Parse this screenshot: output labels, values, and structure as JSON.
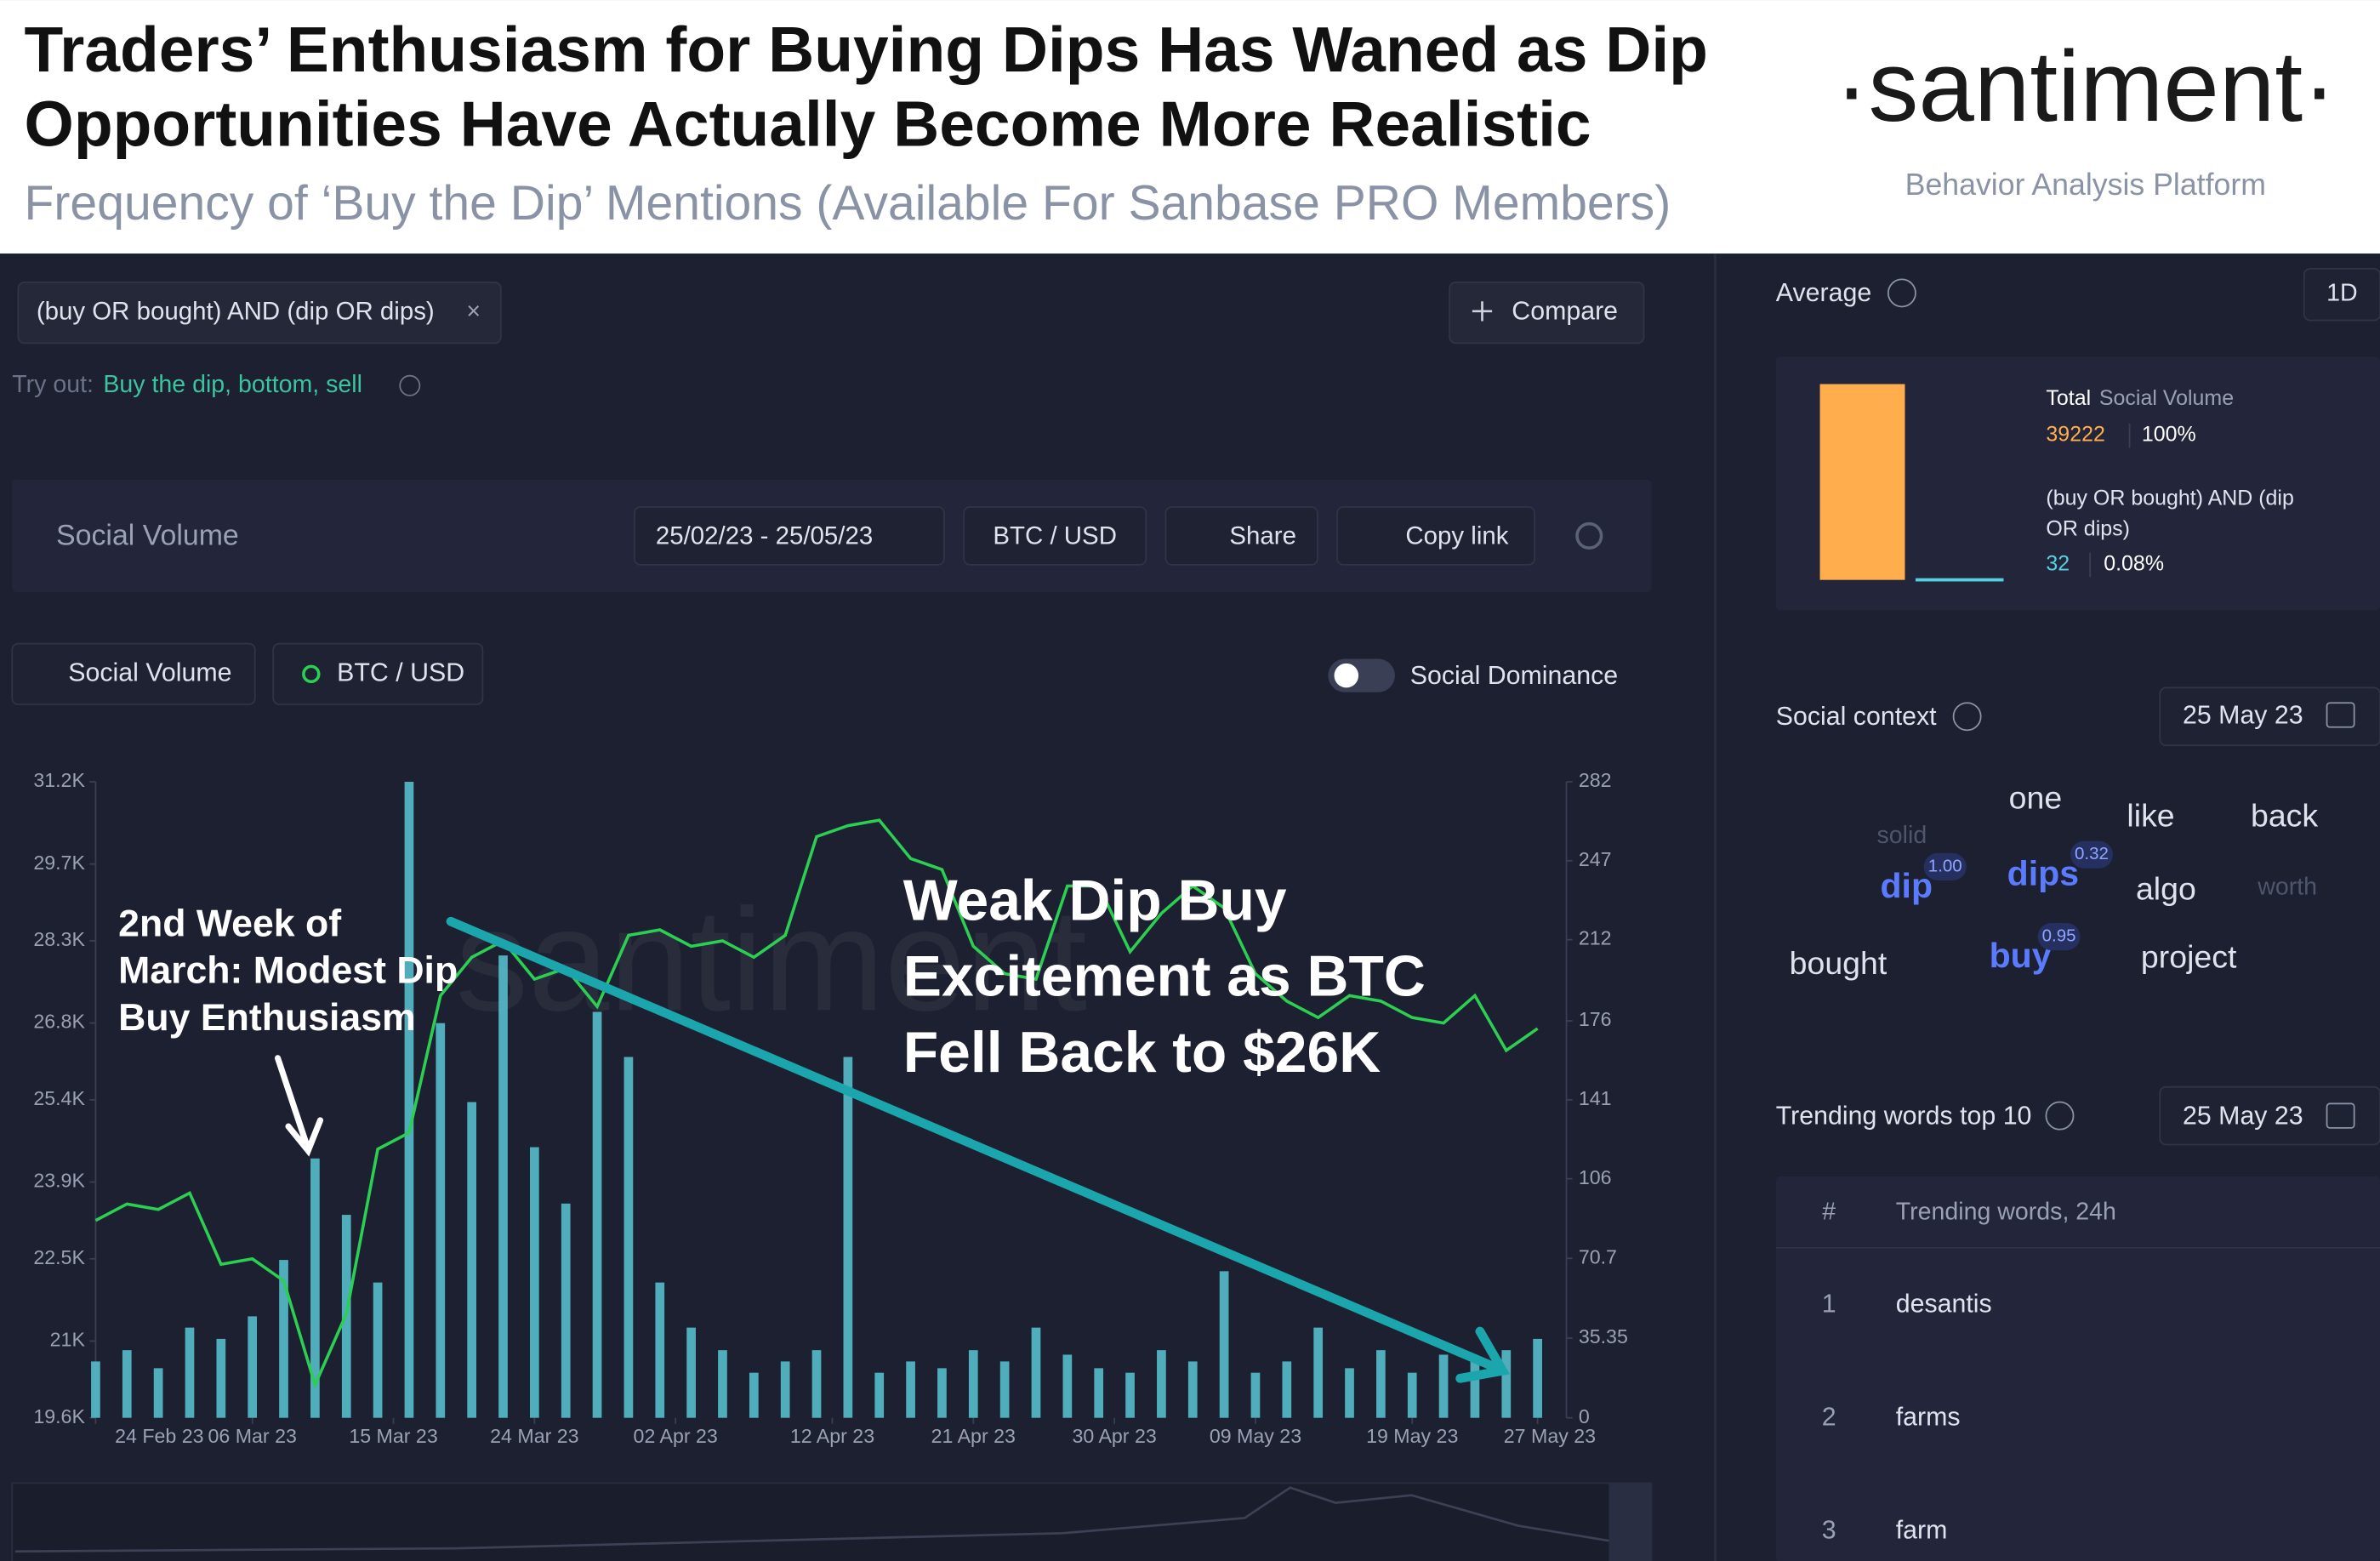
{
  "header": {
    "title_lines": [
      "Traders’ Enthusiasm for Buying Dips Has Waned as Dip",
      "Opportunities Have Actually Become More Realistic"
    ],
    "subtitle": "Frequency of ‘Buy the Dip’ Mentions (Available For Sanbase PRO Members)",
    "brand": "·santiment·",
    "tagline": "Behavior Analysis Platform"
  },
  "toolbar": {
    "query": "(buy OR bought) AND (dip OR dips)",
    "close": "×",
    "compare": "Compare",
    "try_out_label": "Try out:",
    "try_out_links": "Buy the dip, bottom, sell"
  },
  "panel": {
    "metric": "Social Volume",
    "date_range": "25/02/23 - 25/05/23",
    "pair": "BTC / USD",
    "share": "Share",
    "copy_link": "Copy link"
  },
  "chips": {
    "volume": "Social Volume",
    "price": "BTC / USD",
    "toggle": "Social Dominance"
  },
  "chart_data": {
    "type": "combo",
    "watermark": "santiment",
    "x": [
      "2023-02-24",
      "2023-02-26",
      "2023-02-28",
      "2023-03-02",
      "2023-03-04",
      "2023-03-06",
      "2023-03-08",
      "2023-03-10",
      "2023-03-12",
      "2023-03-14",
      "2023-03-16",
      "2023-03-18",
      "2023-03-20",
      "2023-03-22",
      "2023-03-24",
      "2023-03-26",
      "2023-03-28",
      "2023-03-30",
      "2023-04-01",
      "2023-04-03",
      "2023-04-05",
      "2023-04-07",
      "2023-04-09",
      "2023-04-11",
      "2023-04-13",
      "2023-04-15",
      "2023-04-17",
      "2023-04-19",
      "2023-04-21",
      "2023-04-23",
      "2023-04-25",
      "2023-04-27",
      "2023-04-29",
      "2023-05-01",
      "2023-05-03",
      "2023-05-05",
      "2023-05-07",
      "2023-05-09",
      "2023-05-11",
      "2023-05-13",
      "2023-05-15",
      "2023-05-17",
      "2023-05-19",
      "2023-05-21",
      "2023-05-23",
      "2023-05-25",
      "2023-05-27"
    ],
    "series": [
      {
        "name": "Social Volume",
        "type": "bar",
        "axis": "y2",
        "color": "#56bccb",
        "values": [
          25,
          30,
          22,
          40,
          35,
          45,
          70,
          115,
          90,
          60,
          282,
          175,
          140,
          205,
          120,
          95,
          180,
          160,
          60,
          40,
          30,
          20,
          25,
          30,
          160,
          20,
          25,
          22,
          30,
          25,
          40,
          28,
          22,
          20,
          30,
          25,
          65,
          20,
          25,
          40,
          22,
          30,
          20,
          28,
          25,
          30,
          35
        ]
      },
      {
        "name": "BTC / USD",
        "type": "line",
        "color": "#2bd052",
        "values": [
          23200,
          23500,
          23400,
          23700,
          22400,
          22500,
          22100,
          20200,
          21500,
          24500,
          24800,
          27300,
          28000,
          28300,
          27600,
          27800,
          27100,
          28400,
          28500,
          28200,
          28300,
          28000,
          28400,
          30200,
          30400,
          30500,
          29800,
          29600,
          28200,
          27700,
          27600,
          29300,
          29300,
          28100,
          28800,
          29300,
          28900,
          27700,
          27200,
          26900,
          27300,
          27200,
          26900,
          26800,
          27300,
          26300,
          26700
        ]
      }
    ],
    "xlim": [
      "2023-02-24",
      "2023-05-27"
    ],
    "xticks": [
      {
        "value": "2023-02-24",
        "label": "24 Feb 23"
      },
      {
        "value": "2023-03-06",
        "label": "06 Mar 23"
      },
      {
        "value": "2023-03-15",
        "label": "15 Mar 23"
      },
      {
        "value": "2023-03-24",
        "label": "24 Mar 23"
      },
      {
        "value": "2023-04-02",
        "label": "02 Apr 23"
      },
      {
        "value": "2023-04-12",
        "label": "12 Apr 23"
      },
      {
        "value": "2023-04-21",
        "label": "21 Apr 23"
      },
      {
        "value": "2023-04-30",
        "label": "30 Apr 23"
      },
      {
        "value": "2023-05-09",
        "label": "09 May 23"
      },
      {
        "value": "2023-05-19",
        "label": "19 May 23"
      },
      {
        "value": "2023-05-27",
        "label": "27 May 23"
      }
    ],
    "ylim": [
      19600,
      31200
    ],
    "yticks": [
      {
        "value": 19600,
        "label": "19.6K"
      },
      {
        "value": 21000,
        "label": "21K"
      },
      {
        "value": 22500,
        "label": "22.5K"
      },
      {
        "value": 23900,
        "label": "23.9K"
      },
      {
        "value": 25400,
        "label": "25.4K"
      },
      {
        "value": 26800,
        "label": "26.8K"
      },
      {
        "value": 28300,
        "label": "28.3K"
      },
      {
        "value": 29700,
        "label": "29.7K"
      },
      {
        "value": 31200,
        "label": "31.2K"
      }
    ],
    "y2lim": [
      0,
      282
    ],
    "y2ticks": [
      0,
      35.35,
      70.7,
      106,
      141,
      176,
      212,
      247,
      282
    ],
    "grid": false,
    "annotations": [
      [
        "2nd Week of",
        "March: Modest Dip",
        "Buy Enthusiasm"
      ],
      [
        "Weak Dip Buy",
        "Excitement as BTC",
        "Fell Back to $26K"
      ]
    ]
  },
  "sidebar": {
    "average": {
      "label": "Average",
      "interval": "1D",
      "total_label": "Total",
      "total_metric": "Social Volume",
      "total_value": 39222,
      "total_pct": "100%",
      "query_lines": [
        "(buy OR bought) AND (dip",
        "OR dips)"
      ],
      "query_value": 32,
      "query_pct": "0.08%"
    },
    "social_context": {
      "label": "Social context",
      "date": "25 May 23",
      "words": [
        {
          "text": "solid"
        },
        {
          "text": "dip",
          "score": "1.00"
        },
        {
          "text": "one"
        },
        {
          "text": "dips",
          "score": "0.32"
        },
        {
          "text": "like"
        },
        {
          "text": "back"
        },
        {
          "text": "algo"
        },
        {
          "text": "worth"
        },
        {
          "text": "bought"
        },
        {
          "text": "buy",
          "score": "0.95"
        },
        {
          "text": "project"
        }
      ]
    },
    "trending": {
      "label": "Trending words top 10",
      "date": "25 May 23",
      "col_rank": "#",
      "col_word": "Trending words, 24h",
      "rows": [
        [
          1,
          "desantis"
        ],
        [
          2,
          "farms"
        ],
        [
          3,
          "farm"
        ]
      ]
    }
  }
}
